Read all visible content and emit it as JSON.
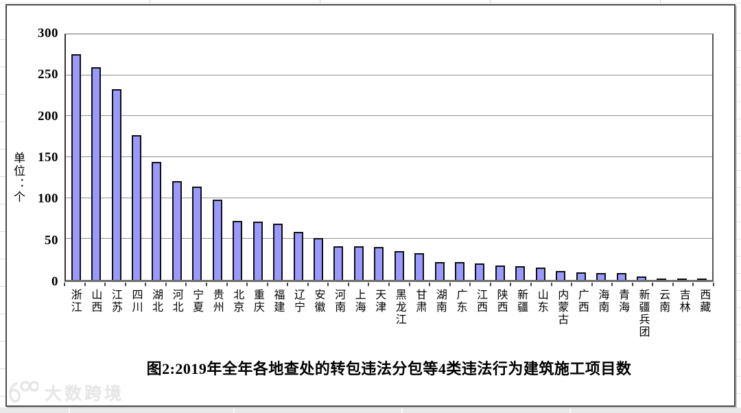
{
  "chart": {
    "title": "图2:2019年全年各地查处的转包违法分包等4类违法行为建筑施工项目数",
    "y_axis_title": "单位：个",
    "watermark_text": "大数跨境"
  },
  "chart_data": {
    "type": "bar",
    "title": "图2:2019年全年各地查处的转包违法分包等4类违法行为建筑施工项目数",
    "xlabel": "",
    "ylabel": "单位：个",
    "ylim": [
      0,
      300
    ],
    "ytick_interval": 50,
    "grid": true,
    "legend": false,
    "bar_color": "#9999ff",
    "bar_border_color": "#0e0e0e",
    "categories": [
      "浙江",
      "山西",
      "江苏",
      "四川",
      "湖北",
      "河北",
      "宁夏",
      "贵州",
      "北京",
      "重庆",
      "福建",
      "辽宁",
      "安徽",
      "河南",
      "上海",
      "天津",
      "黑龙江",
      "甘肃",
      "湖南",
      "广东",
      "江西",
      "陕西",
      "新疆",
      "山东",
      "内蒙古",
      "广西",
      "海南",
      "青海",
      "新疆兵团",
      "云南",
      "吉林",
      "西藏"
    ],
    "values": [
      276,
      260,
      233,
      177,
      144,
      121,
      114,
      98,
      72,
      71,
      69,
      59,
      51,
      41,
      41,
      40,
      35,
      33,
      22,
      22,
      20,
      18,
      17,
      15,
      11,
      9,
      8,
      8,
      4,
      1,
      1,
      1
    ]
  }
}
